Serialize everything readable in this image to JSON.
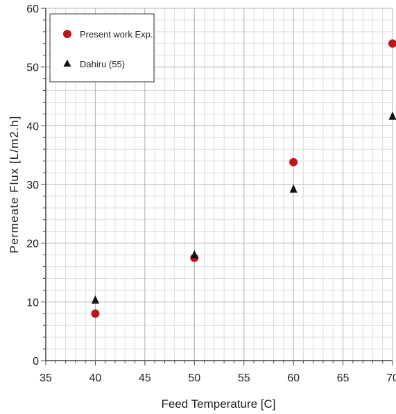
{
  "chart_data": {
    "type": "scatter",
    "title": "",
    "xlabel": "Feed Temperature [C]",
    "ylabel": "Permeate  Flux  [L/m2.h]",
    "xlim": [
      35,
      70
    ],
    "ylim": [
      0,
      60
    ],
    "x_ticks": [
      35,
      40,
      45,
      50,
      55,
      60,
      65,
      70
    ],
    "y_ticks": [
      0,
      10,
      20,
      30,
      40,
      50,
      60
    ],
    "x_tick_labels": [
      "35",
      "40",
      "45",
      "50",
      "55",
      "60",
      "65",
      "70"
    ],
    "y_tick_labels": [
      "0",
      "10",
      "20",
      "30",
      "40",
      "50",
      "60"
    ],
    "grid": true,
    "legend_position": "top-left",
    "series": [
      {
        "name": "Present work Exp.",
        "marker": "circle",
        "color": "#c0141c",
        "x": [
          40,
          50,
          60,
          70
        ],
        "y": [
          8,
          17.5,
          33.8,
          54
        ]
      },
      {
        "name": "Dahiru (55)",
        "marker": "triangle",
        "color": "#111111",
        "x": [
          40,
          50,
          60,
          70
        ],
        "y": [
          10.3,
          18,
          29.2,
          41.6
        ]
      }
    ]
  }
}
